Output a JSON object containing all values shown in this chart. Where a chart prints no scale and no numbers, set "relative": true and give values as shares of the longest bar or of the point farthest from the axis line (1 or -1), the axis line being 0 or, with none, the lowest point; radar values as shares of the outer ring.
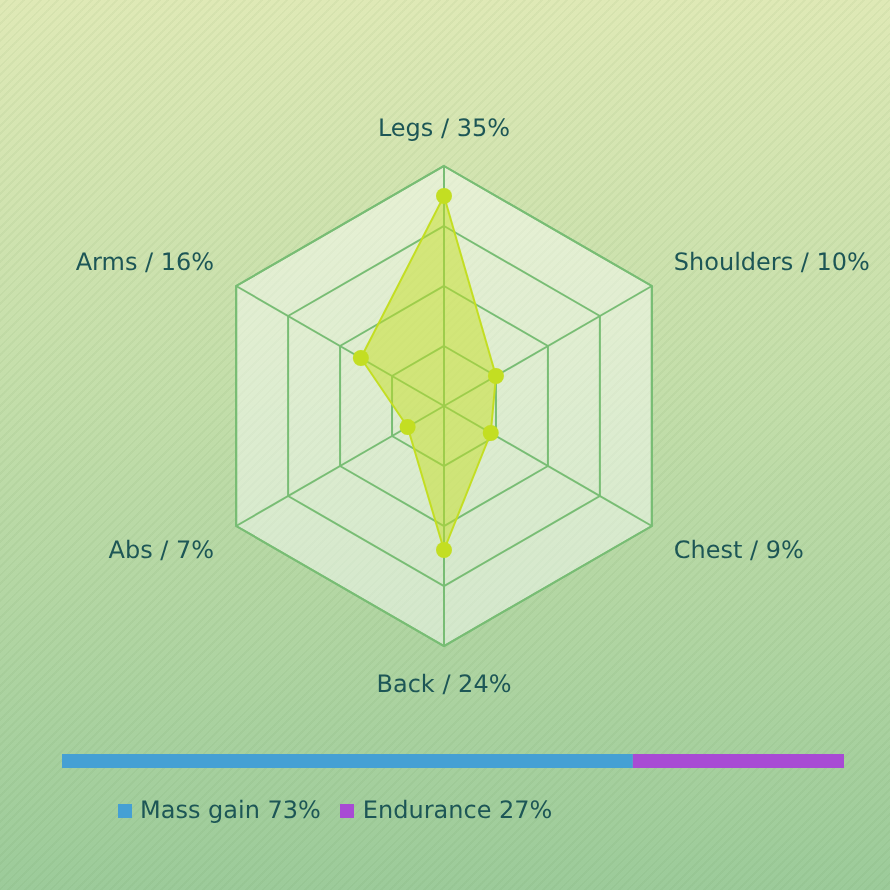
{
  "chart_data": [
    {
      "type": "radar",
      "categories": [
        "Legs / 35%",
        "Shoulders / 10%",
        "Chest / 9%",
        "Back / 24%",
        "Abs / 7%",
        "Arms / 16%"
      ],
      "series": [
        {
          "color": "#c3de22",
          "values": [
            0.875,
            0.25,
            0.225,
            0.6,
            0.175,
            0.4
          ]
        }
      ],
      "relative": true,
      "grid": true,
      "marker": "circle"
    },
    {
      "type": "bar",
      "orientation": "horizontal",
      "stacked": true,
      "relative": true,
      "categories": [
        null
      ],
      "series": [
        {
          "name": "Mass gain 73%",
          "color": "#45a0d4",
          "values": [
            0.73
          ]
        },
        {
          "name": "Endurance 27%",
          "color": "#a84bd4",
          "values": [
            0.27
          ]
        }
      ],
      "tick_labels": false,
      "legend": "bottom left"
    }
  ]
}
